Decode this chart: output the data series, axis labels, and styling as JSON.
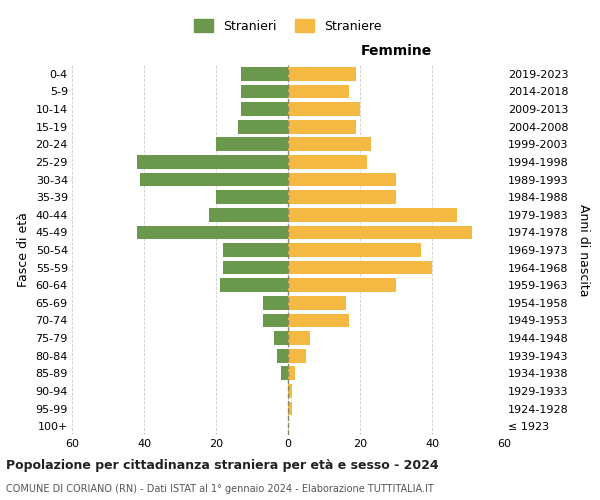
{
  "age_groups": [
    "100+",
    "95-99",
    "90-94",
    "85-89",
    "80-84",
    "75-79",
    "70-74",
    "65-69",
    "60-64",
    "55-59",
    "50-54",
    "45-49",
    "40-44",
    "35-39",
    "30-34",
    "25-29",
    "20-24",
    "15-19",
    "10-14",
    "5-9",
    "0-4"
  ],
  "birth_years": [
    "≤ 1923",
    "1924-1928",
    "1929-1933",
    "1934-1938",
    "1939-1943",
    "1944-1948",
    "1949-1953",
    "1954-1958",
    "1959-1963",
    "1964-1968",
    "1969-1973",
    "1974-1978",
    "1979-1983",
    "1984-1988",
    "1989-1993",
    "1994-1998",
    "1999-2003",
    "2004-2008",
    "2009-2013",
    "2014-2018",
    "2019-2023"
  ],
  "males": [
    0,
    0,
    0,
    2,
    3,
    4,
    7,
    7,
    19,
    18,
    18,
    42,
    22,
    20,
    41,
    42,
    20,
    14,
    13,
    13,
    13
  ],
  "females": [
    0,
    1,
    1,
    2,
    5,
    6,
    17,
    16,
    30,
    40,
    37,
    51,
    47,
    30,
    30,
    22,
    23,
    19,
    20,
    17,
    19
  ],
  "male_color": "#6a994e",
  "female_color": "#f4b942",
  "male_label": "Stranieri",
  "female_label": "Straniere",
  "right_title": "Femmine",
  "ylabel": "Fasce di età",
  "right_ylabel": "Anni di nascita",
  "xlim": 60,
  "xticks": [
    -60,
    -40,
    -20,
    0,
    20,
    40,
    60
  ],
  "xticklabels": [
    "60",
    "40",
    "20",
    "0",
    "20",
    "40",
    "60"
  ],
  "title": "Popolazione per cittadinanza straniera per età e sesso - 2024",
  "subtitle": "COMUNE DI CORIANO (RN) - Dati ISTAT al 1° gennaio 2024 - Elaborazione TUTTITALIA.IT",
  "background_color": "#ffffff",
  "grid_color": "#cccccc",
  "dashed_line_color": "#888866"
}
